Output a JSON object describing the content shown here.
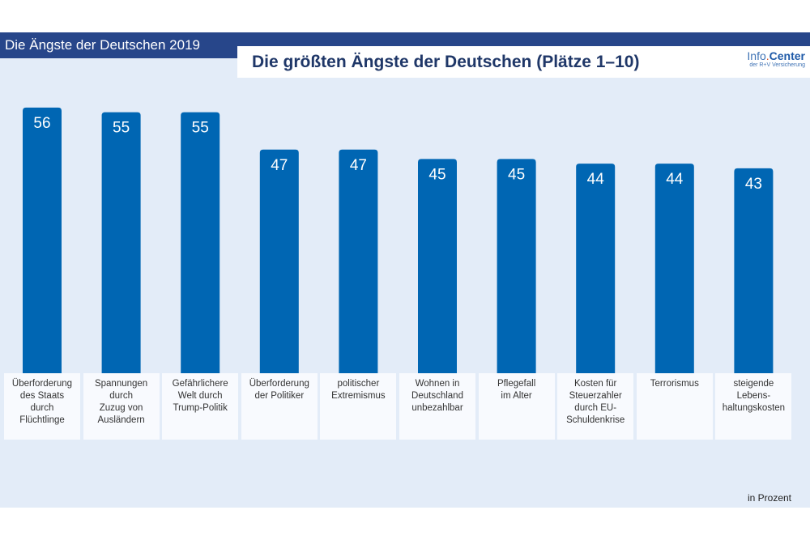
{
  "header": {
    "section": "Die Ängste der Deutschen 2019",
    "logo_main": "Info",
    "logo_bold": "Center",
    "logo_sub": "der R+V Versicherung"
  },
  "colors": {
    "bar": "#0066b3",
    "header": "#27468a",
    "background": "#e3ecf8"
  },
  "chart_data": {
    "type": "bar",
    "title": "Die größten Ängste der Deutschen (Plätze 1–10)",
    "unit": "in Prozent",
    "categories": [
      "Überforderung\ndes Staats\ndurch\nFlüchtlinge",
      "Spannungen\ndurch\nZuzug von\nAusländern",
      "Gefährlichere\nWelt durch\nTrump-Politik",
      "Überforderung\nder Politiker",
      "politischer\nExtremismus",
      "Wohnen in\nDeutschland\nunbezahlbar",
      "Pflegefall\nim Alter",
      "Kosten für\nSteuerzahler\ndurch EU-\nSchuldenkrise",
      "Terrorismus",
      "steigende\nLebens-\nhaltungskosten"
    ],
    "values": [
      56,
      55,
      55,
      47,
      47,
      45,
      45,
      44,
      44,
      43
    ],
    "ylim": [
      0,
      56
    ],
    "grid": false
  }
}
